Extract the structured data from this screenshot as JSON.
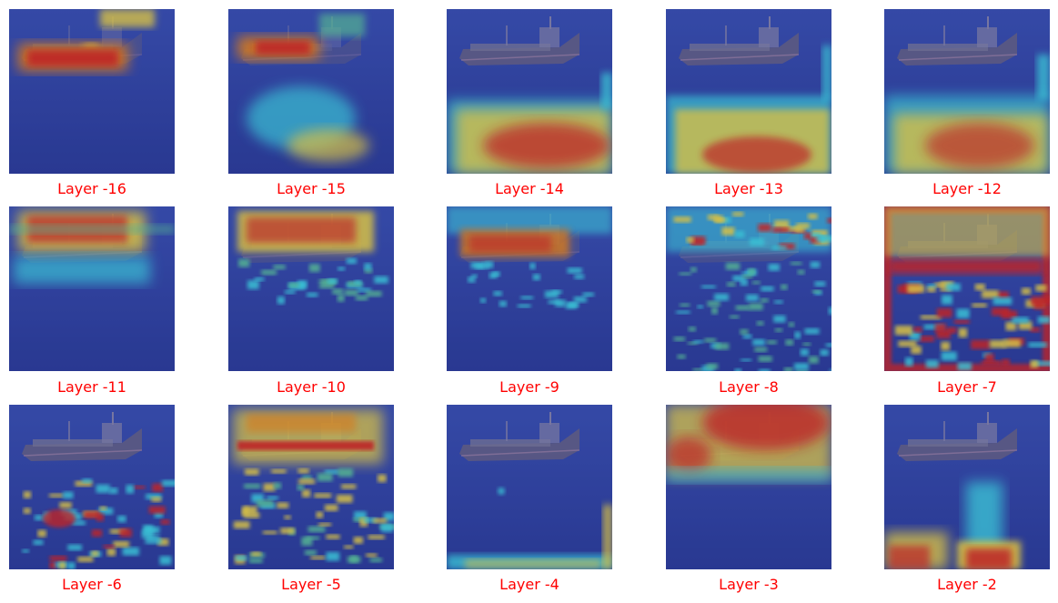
{
  "panels": [
    {
      "label": "Layer -16",
      "heat": "Bright red-yellow activation on the ship hull; sea mostly dark blue"
    },
    {
      "label": "Layer -15",
      "heat": "Red activation on front of ship; cyan patches scattered on the water"
    },
    {
      "label": "Layer -14",
      "heat": "Ship unactivated; broad yellow-red activation across lower water"
    },
    {
      "label": "Layer -13",
      "heat": "Ship unactivated; blocky yellow-red activation across lower water"
    },
    {
      "label": "Layer -12",
      "heat": "Ship unactivated; yellow-red activation across lower water"
    },
    {
      "label": "Layer -11",
      "heat": "Red-yellow activation over ship superstructure; cyan below hull"
    },
    {
      "label": "Layer -10",
      "heat": "Red-yellow activation over ship; cyan bands below hull"
    },
    {
      "label": "Layer -9",
      "heat": "Orange activation on ship body; faint cyan reflections"
    },
    {
      "label": "Layer -8",
      "heat": "Mixed red-cyan along ship top; cyan speckles over water"
    },
    {
      "label": "Layer -7",
      "heat": "Red-yellow border frame and horizontal band; cyan lattice on water"
    },
    {
      "label": "Layer -6",
      "heat": "Ship unactivated; speckled yellow-red spots in lower-left water"
    },
    {
      "label": "Layer -5",
      "heat": "Yellow-red outline around ship; cyan speckles over water"
    },
    {
      "label": "Layer -4",
      "heat": "Mostly dark blue; cyan-yellow strip along the bottom edge"
    },
    {
      "label": "Layer -3",
      "heat": "Large red-orange blob covering the upper part and ship"
    },
    {
      "label": "Layer -2",
      "heat": "Ship unactivated; red-yellow activation at bottom center and bottom-left"
    }
  ]
}
